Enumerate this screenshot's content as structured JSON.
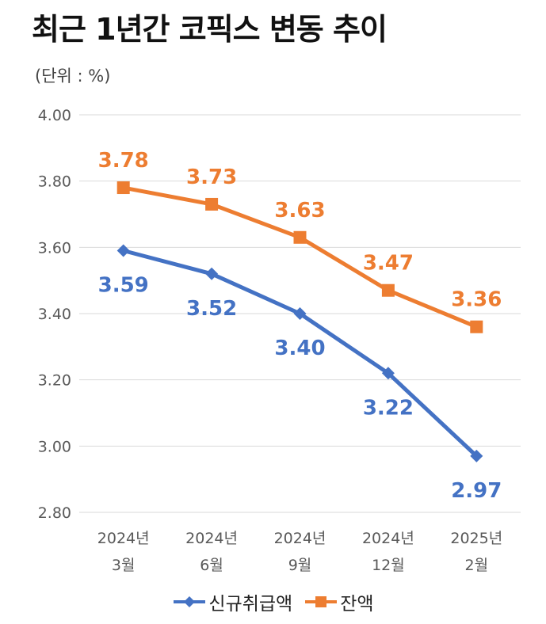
{
  "title": "최근 1년간 코픽스 변동 추이",
  "unit_label": "(단위 : %)",
  "colors": {
    "new": "#4472C4",
    "balance": "#ED7D31",
    "grid": "#D9D9D9",
    "axis_text": "#595959"
  },
  "chart_data": {
    "type": "line",
    "title": "최근 1년간 코픽스 변동 추이",
    "ylabel": "(단위 : %)",
    "ylim": [
      2.8,
      4.0
    ],
    "yticks": [
      "4.00",
      "3.80",
      "3.60",
      "3.40",
      "3.20",
      "3.00",
      "2.80"
    ],
    "categories": [
      [
        "2024년",
        "3월"
      ],
      [
        "2024년",
        "6월"
      ],
      [
        "2024년",
        "9월"
      ],
      [
        "2024년",
        "12월"
      ],
      [
        "2025년",
        "2월"
      ]
    ],
    "series": [
      {
        "name": "신규취급액",
        "marker": "diamond",
        "color": "#4472C4",
        "values": [
          3.59,
          3.52,
          3.4,
          3.22,
          2.97
        ],
        "labels": [
          "3.59",
          "3.52",
          "3.40",
          "3.22",
          "2.97"
        ],
        "label_position": "below"
      },
      {
        "name": "잔액",
        "marker": "square",
        "color": "#ED7D31",
        "values": [
          3.78,
          3.73,
          3.63,
          3.47,
          3.36
        ],
        "labels": [
          "3.78",
          "3.73",
          "3.63",
          "3.47",
          "3.36"
        ],
        "label_position": "above"
      }
    ],
    "grid": true,
    "legend_position": "bottom"
  }
}
